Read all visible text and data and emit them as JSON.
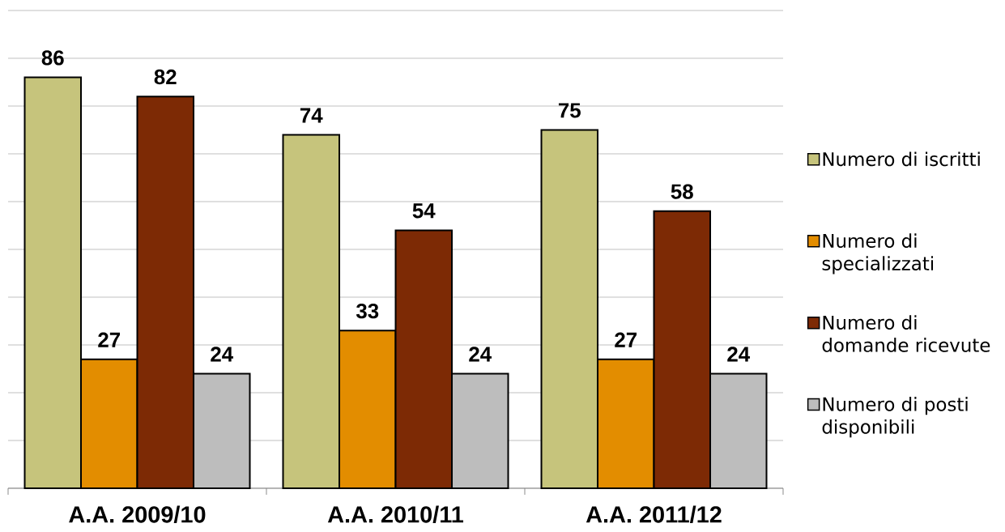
{
  "chart_data": {
    "type": "bar",
    "categories": [
      "A.A. 2009/10",
      "A.A. 2010/11",
      "A.A. 2011/12"
    ],
    "series": [
      {
        "name": "Numero di iscritti",
        "color": "#c6c47c",
        "values": [
          86,
          74,
          75
        ]
      },
      {
        "name": "Numero di specializzati",
        "color": "#e38d00",
        "values": [
          27,
          33,
          27
        ]
      },
      {
        "name": "Numero di domande ricevute",
        "color": "#7d2a05",
        "values": [
          82,
          54,
          58
        ]
      },
      {
        "name": "Numero di posti disponibili",
        "color": "#bdbdbd",
        "values": [
          24,
          24,
          24
        ]
      }
    ],
    "ylim": [
      0,
      100
    ],
    "yticks": [
      0,
      10,
      20,
      30,
      40,
      50,
      60,
      70,
      80,
      90,
      100
    ],
    "grid": "y",
    "tick_labels": "x",
    "legend": "right",
    "data_labels": true
  }
}
